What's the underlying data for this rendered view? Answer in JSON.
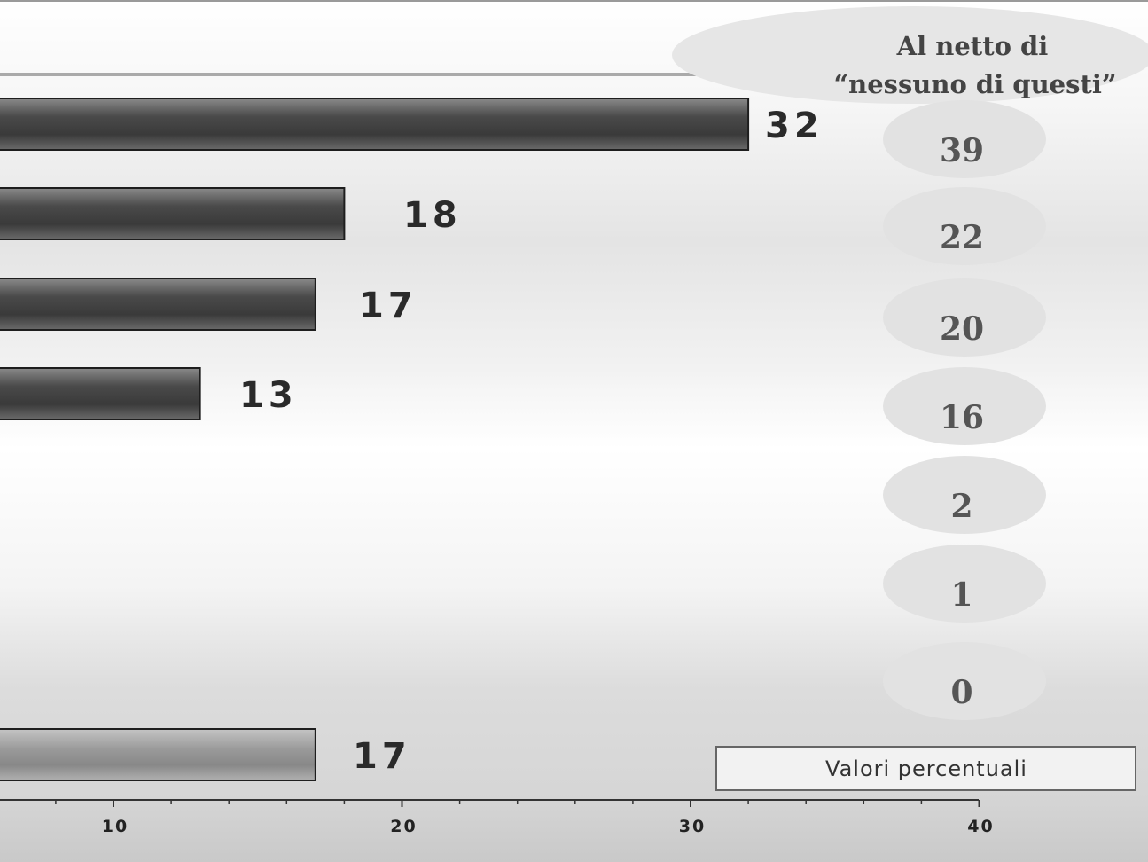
{
  "chart_data": {
    "type": "bar",
    "orientation": "horizontal",
    "values": [
      32,
      18,
      17,
      13,
      null,
      null,
      null,
      17
    ],
    "net_title_line1": "Al netto di",
    "net_title_line2": "“nessuno di questi”",
    "net_values": [
      39,
      22,
      20,
      16,
      2,
      1,
      0
    ],
    "xlim": [
      0,
      40
    ],
    "xticks": [
      10,
      20,
      30,
      40
    ],
    "legend_label": "Valori percentuali",
    "colors": {
      "bar": "#5a5a5a",
      "bar_light": "#9a9a9a",
      "badge": "#e2e2e2"
    }
  }
}
